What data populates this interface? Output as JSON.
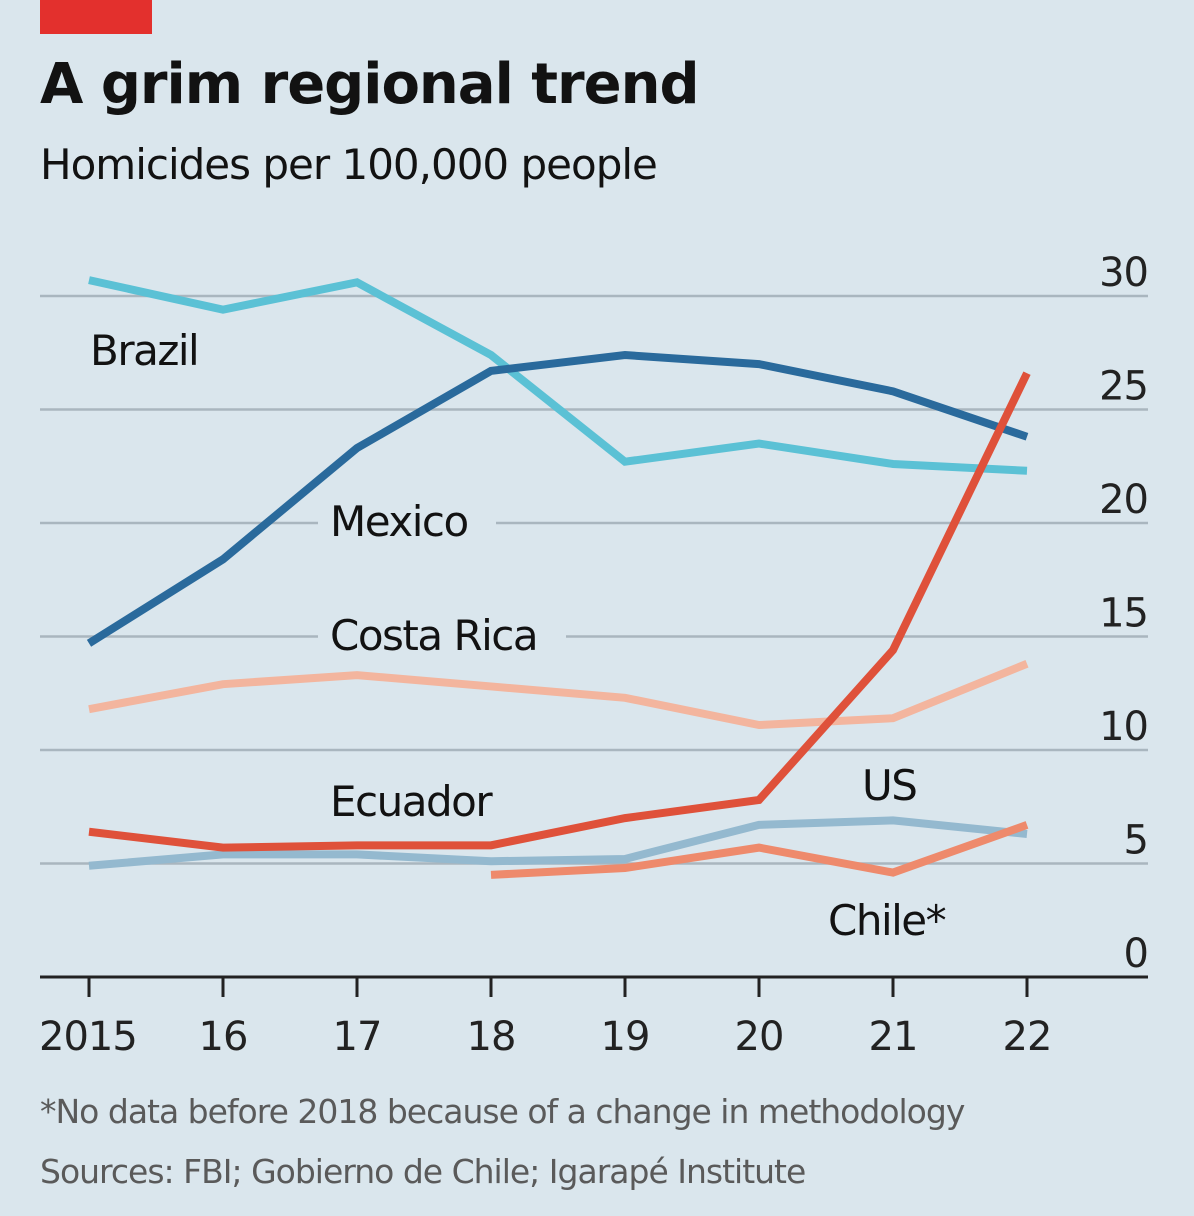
{
  "chart_data": {
    "type": "line",
    "title": "A grim regional trend",
    "subtitle": "Homicides per 100,000 people",
    "xlabel": "",
    "ylabel": "",
    "x": [
      2015,
      2016,
      2017,
      2018,
      2019,
      2020,
      2021,
      2022
    ],
    "x_tick_labels": [
      "2015",
      "16",
      "17",
      "18",
      "19",
      "20",
      "21",
      "22"
    ],
    "y_ticks": [
      0,
      5,
      10,
      15,
      20,
      25,
      30
    ],
    "ylim": [
      0,
      30
    ],
    "grid": true,
    "y_axis_side": "right",
    "series": [
      {
        "name": "Brazil",
        "color": "#5bc1d5",
        "values": [
          30.7,
          29.4,
          30.6,
          27.4,
          22.7,
          23.5,
          22.6,
          22.3
        ]
      },
      {
        "name": "Mexico",
        "color": "#2a6a9c",
        "values": [
          14.7,
          18.4,
          23.3,
          26.7,
          27.4,
          27.0,
          25.8,
          23.8
        ]
      },
      {
        "name": "Costa Rica",
        "color": "#f3b59e",
        "values": [
          11.8,
          12.9,
          13.3,
          12.8,
          12.3,
          11.1,
          11.4,
          13.8
        ]
      },
      {
        "name": "Ecuador",
        "color": "#df513a",
        "values": [
          6.4,
          5.7,
          5.8,
          5.8,
          7.0,
          7.8,
          14.4,
          26.6
        ]
      },
      {
        "name": "US",
        "color": "#94b9cf",
        "values": [
          4.9,
          5.4,
          5.4,
          5.1,
          5.2,
          6.7,
          6.9,
          6.3
        ]
      },
      {
        "name": "Chile*",
        "color": "#ee8a6c",
        "values": [
          null,
          null,
          null,
          4.5,
          4.8,
          5.7,
          4.6,
          6.7
        ]
      }
    ],
    "footnote": "*No data before 2018 because of a change in methodology",
    "source": "Sources: FBI; Gobierno de Chile; Igarapé Institute"
  },
  "accent_color": "#e3302d"
}
